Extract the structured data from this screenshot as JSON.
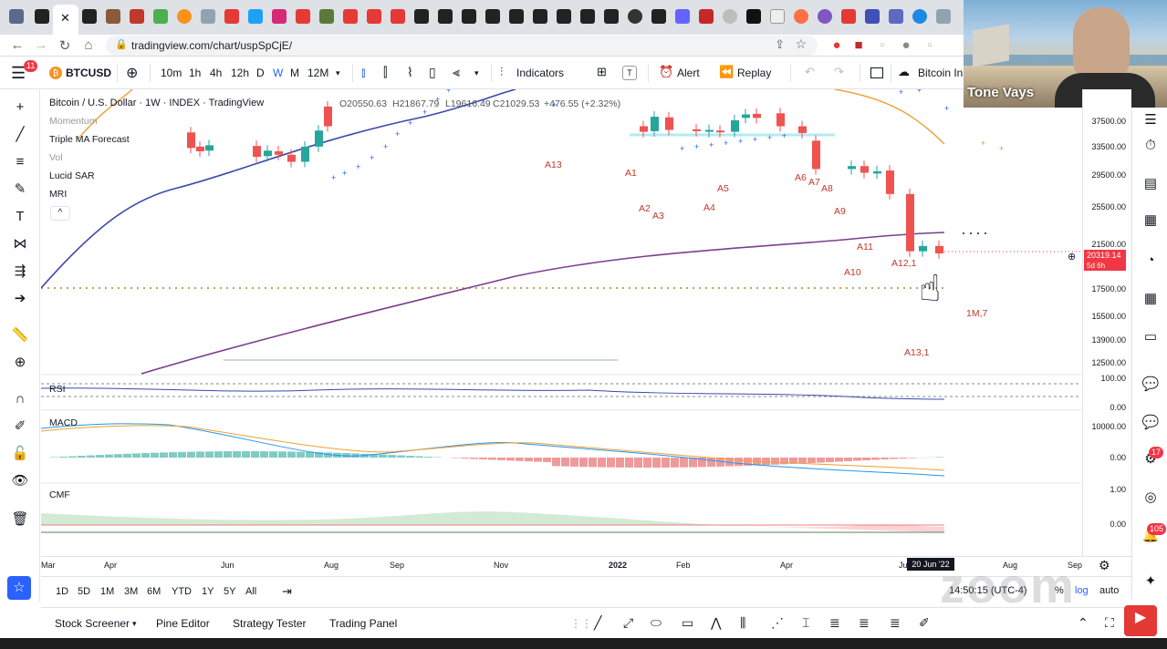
{
  "browser": {
    "url": "tradingview.com/chart/uspSpCjE/",
    "accent": "#dee1e6"
  },
  "header": {
    "menu_badge": "11",
    "symbol": "BTCUSD",
    "intervals": [
      "10m",
      "1h",
      "4h",
      "12h",
      "D",
      "W",
      "M",
      "12M"
    ],
    "indicators_label": "Indicators",
    "alert_label": "Alert",
    "replay_label": "Replay",
    "layout_title": "Bitcoin In"
  },
  "legend": {
    "title": "Bitcoin / U.S. Dollar · 1W · INDEX · TradingView",
    "open": "O20550.63",
    "high": "H21867.79",
    "low": "L19616.49",
    "close": "C21029.53",
    "change": "+476.55 (+2.32%)",
    "indicators": [
      "Momentum",
      "Triple MA Forecast",
      "Vol",
      "Lucid SAR",
      "MRI"
    ]
  },
  "price_scale": {
    "labels": [
      "37500.00",
      "33500.00",
      "29500.00",
      "25500.00",
      "21500.00",
      "17500.00",
      "15500.00",
      "13900.00",
      "12500.00"
    ],
    "current_price": "20319.14",
    "current_countdown": "5d 6h"
  },
  "panes": {
    "rsi": {
      "name": "RSI",
      "scale": [
        "100.00",
        "0.00"
      ]
    },
    "macd": {
      "name": "MACD",
      "scale": [
        "10000.00",
        "0.00"
      ]
    },
    "cmf": {
      "name": "CMF",
      "scale": [
        "1.00",
        "0.00"
      ]
    }
  },
  "time_axis": {
    "labels": [
      "Mar",
      "Apr",
      "Jun",
      "Aug",
      "Sep",
      "Nov",
      "2022",
      "Feb",
      "Apr",
      "Jun",
      "Aug",
      "Sep"
    ],
    "cursor_date": "20 Jun '22"
  },
  "annotations": [
    "1M,7",
    "A13,1",
    "A12,1",
    "A10",
    "A11",
    "A13",
    "A1",
    "A2",
    "A3",
    "A4",
    "A5",
    "A6",
    "A7",
    "A8",
    "A9"
  ],
  "ranges": [
    "1D",
    "5D",
    "1M",
    "3M",
    "6M",
    "YTD",
    "1Y",
    "5Y",
    "All"
  ],
  "status": {
    "clock": "14:50:15 (UTC-4)",
    "percent": "%",
    "log": "log",
    "auto": "auto"
  },
  "bottom_tabs": [
    "Stock Screener",
    "Pine Editor",
    "Strategy Tester",
    "Trading Panel"
  ],
  "webcam": {
    "name": "Tone Vays"
  },
  "right_badges": [
    "17",
    "105"
  ],
  "watermark": "zoom",
  "colors": {
    "up": "#26a69a",
    "down": "#ef5350",
    "ma_blue": "#3949ab",
    "ma_purple": "#7b3f8c",
    "ma_orange": "#f0a030"
  },
  "chart_data": {
    "type": "candlestick",
    "symbol": "BTCUSD",
    "interval": "1W",
    "scale": "log",
    "price_range_visible": [
      12500,
      37500
    ],
    "last_bar": {
      "open": 20550.63,
      "high": 21867.79,
      "low": 19616.49,
      "close": 21029.53,
      "change": 476.55,
      "change_pct": 2.32
    },
    "candles": [
      {
        "o": 35200,
        "c": 32800
      },
      {
        "o": 33000,
        "c": 32300
      },
      {
        "o": 32400,
        "c": 33200
      },
      {
        "o": 33100,
        "c": 31500
      },
      {
        "o": 31600,
        "c": 32400
      },
      {
        "o": 32300,
        "c": 31800
      },
      {
        "o": 31800,
        "c": 30800
      },
      {
        "o": 30800,
        "c": 33000
      },
      {
        "o": 33000,
        "c": 35500
      },
      {
        "o": 39600,
        "c": 36200
      },
      {
        "o": 36200,
        "c": 35300
      },
      {
        "o": 35400,
        "c": 37800
      },
      {
        "o": 37700,
        "c": 35600
      },
      {
        "o": 35700,
        "c": 35400
      },
      {
        "o": 35300,
        "c": 35600
      },
      {
        "o": 35500,
        "c": 35300
      },
      {
        "o": 35300,
        "c": 37200
      },
      {
        "o": 37600,
        "c": 38200
      },
      {
        "o": 38300,
        "c": 37600
      },
      {
        "o": 38400,
        "c": 36200
      },
      {
        "o": 36200,
        "c": 35100
      },
      {
        "o": 33900,
        "c": 29800
      },
      {
        "o": 29800,
        "c": 30200
      },
      {
        "o": 30200,
        "c": 29300
      },
      {
        "o": 29200,
        "c": 29500
      },
      {
        "o": 29600,
        "c": 26600
      },
      {
        "o": 26600,
        "c": 20500
      },
      {
        "o": 20500,
        "c": 21000
      },
      {
        "o": 21000,
        "c": 20300
      }
    ]
  }
}
